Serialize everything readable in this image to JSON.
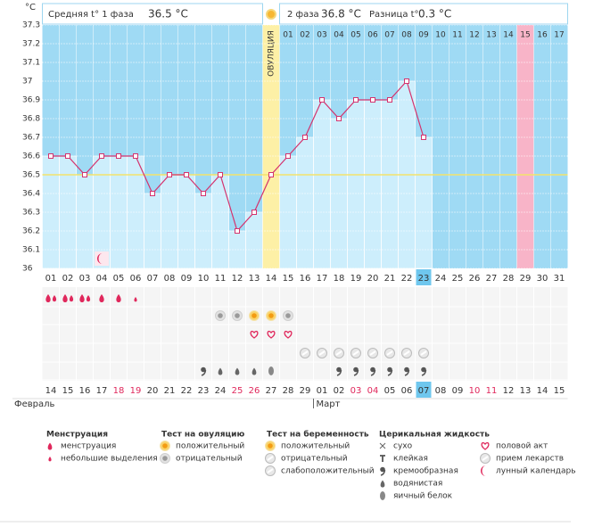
{
  "header": {
    "phase1_label": "Средняя t° 1 фаза",
    "phase1_value": "36.5 °C",
    "phase2_label": "2 фаза",
    "phase2_value": "36.8 °C",
    "diff_label": "Разница t°",
    "diff_value": "0.3 °C"
  },
  "chart_data": {
    "type": "line",
    "y_unit": "°C",
    "ylim": [
      36,
      37.3
    ],
    "yticks": [
      36,
      36.1,
      36.2,
      36.3,
      36.4,
      36.5,
      36.6,
      36.7,
      36.8,
      36.9,
      37,
      37.1,
      37.2,
      37.3
    ],
    "categories": [
      "01",
      "02",
      "03",
      "04",
      "05",
      "06",
      "07",
      "08",
      "09",
      "10",
      "11",
      "12",
      "13",
      "14",
      "15",
      "16",
      "17",
      "18",
      "19",
      "20",
      "21",
      "22",
      "23",
      "24",
      "25",
      "26",
      "27",
      "28",
      "29",
      "30",
      "31"
    ],
    "values": [
      36.6,
      36.6,
      36.5,
      36.6,
      36.6,
      36.6,
      36.4,
      36.5,
      36.5,
      36.4,
      36.5,
      36.2,
      36.3,
      36.5,
      36.6,
      36.7,
      36.9,
      36.8,
      36.9,
      36.9,
      36.9,
      37,
      36.7,
      null,
      null,
      null,
      null,
      null,
      null,
      null,
      null
    ],
    "color": "#d4336e",
    "coverline": 36.5,
    "ovulation_day": 14,
    "ovulation_label": "ОВУЛЯЦИЯ",
    "highlight_day": 23,
    "pink_day": 29,
    "phase2_days": [
      "01",
      "02",
      "03",
      "04",
      "05",
      "06",
      "07",
      "08",
      "09",
      "10",
      "11",
      "12",
      "13",
      "14",
      "15",
      "16",
      "17"
    ],
    "dates": [
      "14",
      "15",
      "16",
      "17",
      "18",
      "19",
      "20",
      "21",
      "22",
      "23",
      "24",
      "25",
      "26",
      "27",
      "28",
      "29",
      "01",
      "02",
      "03",
      "04",
      "05",
      "06",
      "07",
      "08",
      "09",
      "10",
      "11",
      "12",
      "13",
      "14",
      "15"
    ],
    "months": [
      "Февраль",
      "Март"
    ]
  },
  "legend": [
    {
      "title": "Менструация",
      "items": [
        "менструация",
        "небольшие выделения"
      ]
    },
    {
      "title": "Тест на овуляцию",
      "items": [
        "положительный",
        "отрицательный"
      ]
    },
    {
      "title": "Тест на беременность",
      "items": [
        "положительный",
        "отрицательный",
        "слабоположительный"
      ]
    },
    {
      "title": "Церикальная жидкость",
      "items": [
        "сухо",
        "клейкая",
        "кремообразная",
        "водянистая",
        "яичный белок"
      ]
    },
    {
      "items": [
        "половой акт",
        "прием лекарств",
        "лунный календарь"
      ]
    }
  ]
}
